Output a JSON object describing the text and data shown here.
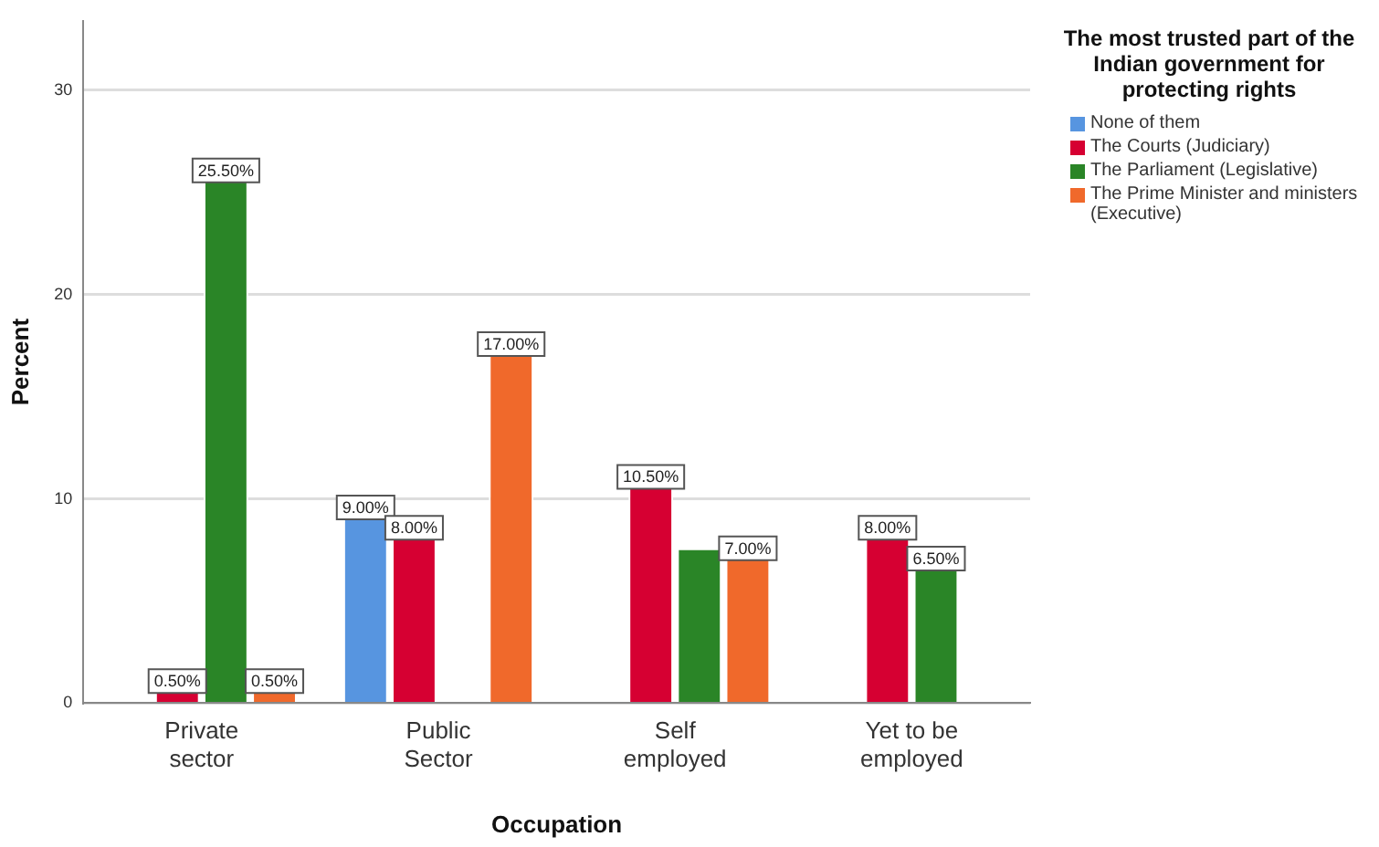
{
  "chart_data": {
    "type": "bar",
    "xlabel": "Occupation",
    "ylabel": "Percent",
    "legend_title": "The most trusted part of the Indian government for protecting rights",
    "categories": [
      "Private sector",
      "Public Sector",
      "Self employed",
      "Yet to be employed"
    ],
    "series": [
      {
        "name": "None of them",
        "color": "#5795e0",
        "values": [
          null,
          9.0,
          null,
          null
        ],
        "value_labels": [
          null,
          "9.00%",
          null,
          null
        ]
      },
      {
        "name": "The Courts (Judiciary)",
        "color": "#d60032",
        "values": [
          0.5,
          8.0,
          10.5,
          8.0
        ],
        "value_labels": [
          "0.50%",
          "8.00%",
          "10.50%",
          "8.00%"
        ]
      },
      {
        "name": "The Parliament (Legislative)",
        "color": "#2a8527",
        "values": [
          25.5,
          null,
          7.5,
          6.5
        ],
        "value_labels": [
          "25.50%",
          null,
          null,
          "6.50%"
        ]
      },
      {
        "name": "The Prime Minister and ministers (Executive)",
        "color": "#f0692b",
        "values": [
          0.5,
          17.0,
          7.0,
          null
        ],
        "value_labels": [
          "0.50%",
          "17.00%",
          "7.00%",
          null
        ]
      }
    ],
    "ylim": [
      0,
      33.4
    ],
    "yticks": [
      0,
      10,
      20,
      30
    ],
    "grid": "y",
    "legend": "right"
  }
}
